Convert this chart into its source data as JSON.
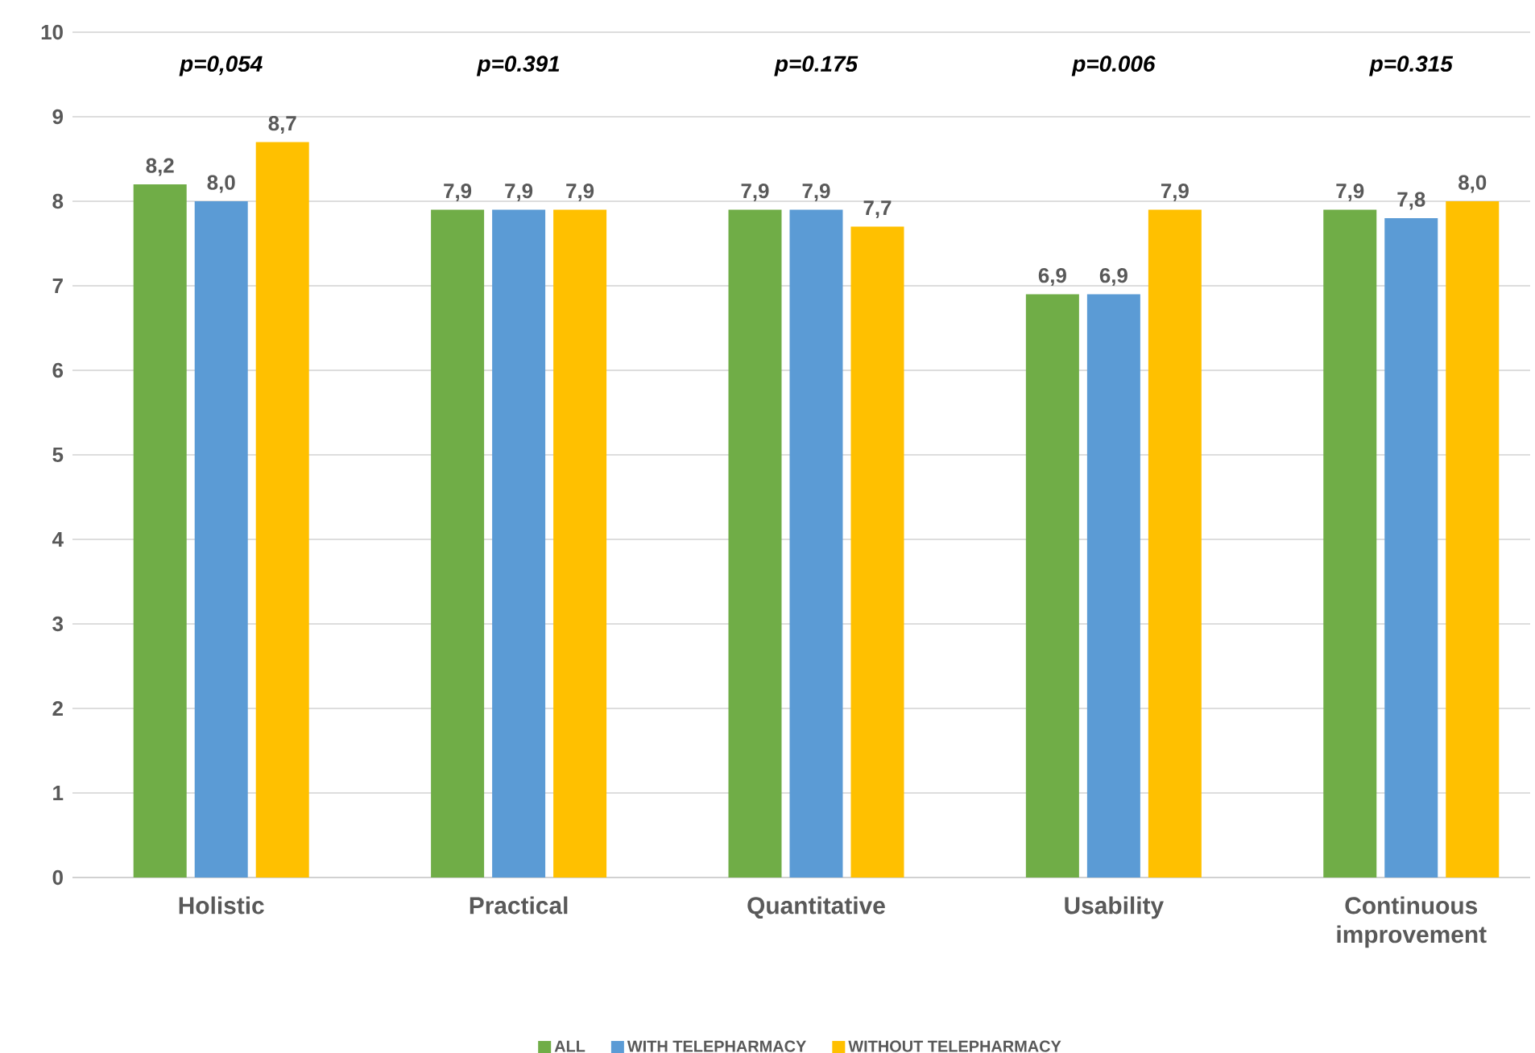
{
  "chart_data": {
    "type": "bar",
    "categories": [
      "Holistic",
      "Practical",
      "Quantitative",
      "Usability",
      "Continuous improvement"
    ],
    "series": [
      {
        "name": "ALL",
        "color": "#70ad47",
        "values": [
          8.2,
          7.9,
          7.9,
          6.9,
          7.9
        ],
        "value_labels": [
          "8,2",
          "7,9",
          "7,9",
          "6,9",
          "7,9"
        ]
      },
      {
        "name": "WITH TELEPHARMACY",
        "color": "#5b9bd5",
        "values": [
          8.0,
          7.9,
          7.9,
          6.9,
          7.8
        ],
        "value_labels": [
          "8,0",
          "7,9",
          "7,9",
          "6,9",
          "7,8"
        ]
      },
      {
        "name": "WITHOUT TELEPHARMACY",
        "color": "#ffc000",
        "values": [
          8.7,
          7.9,
          7.7,
          7.9,
          8.0
        ],
        "value_labels": [
          "8,7",
          "7,9",
          "7,7",
          "7,9",
          "8,0"
        ]
      }
    ],
    "annotations": [
      "p=0,054",
      "p=0.391",
      "p=0.175",
      "p=0.006",
      "p=0.315"
    ],
    "ylim": [
      0,
      10
    ],
    "yticks": [
      0,
      1,
      2,
      3,
      4,
      5,
      6,
      7,
      8,
      9,
      10
    ],
    "grid": "y",
    "legend": "bottom"
  }
}
